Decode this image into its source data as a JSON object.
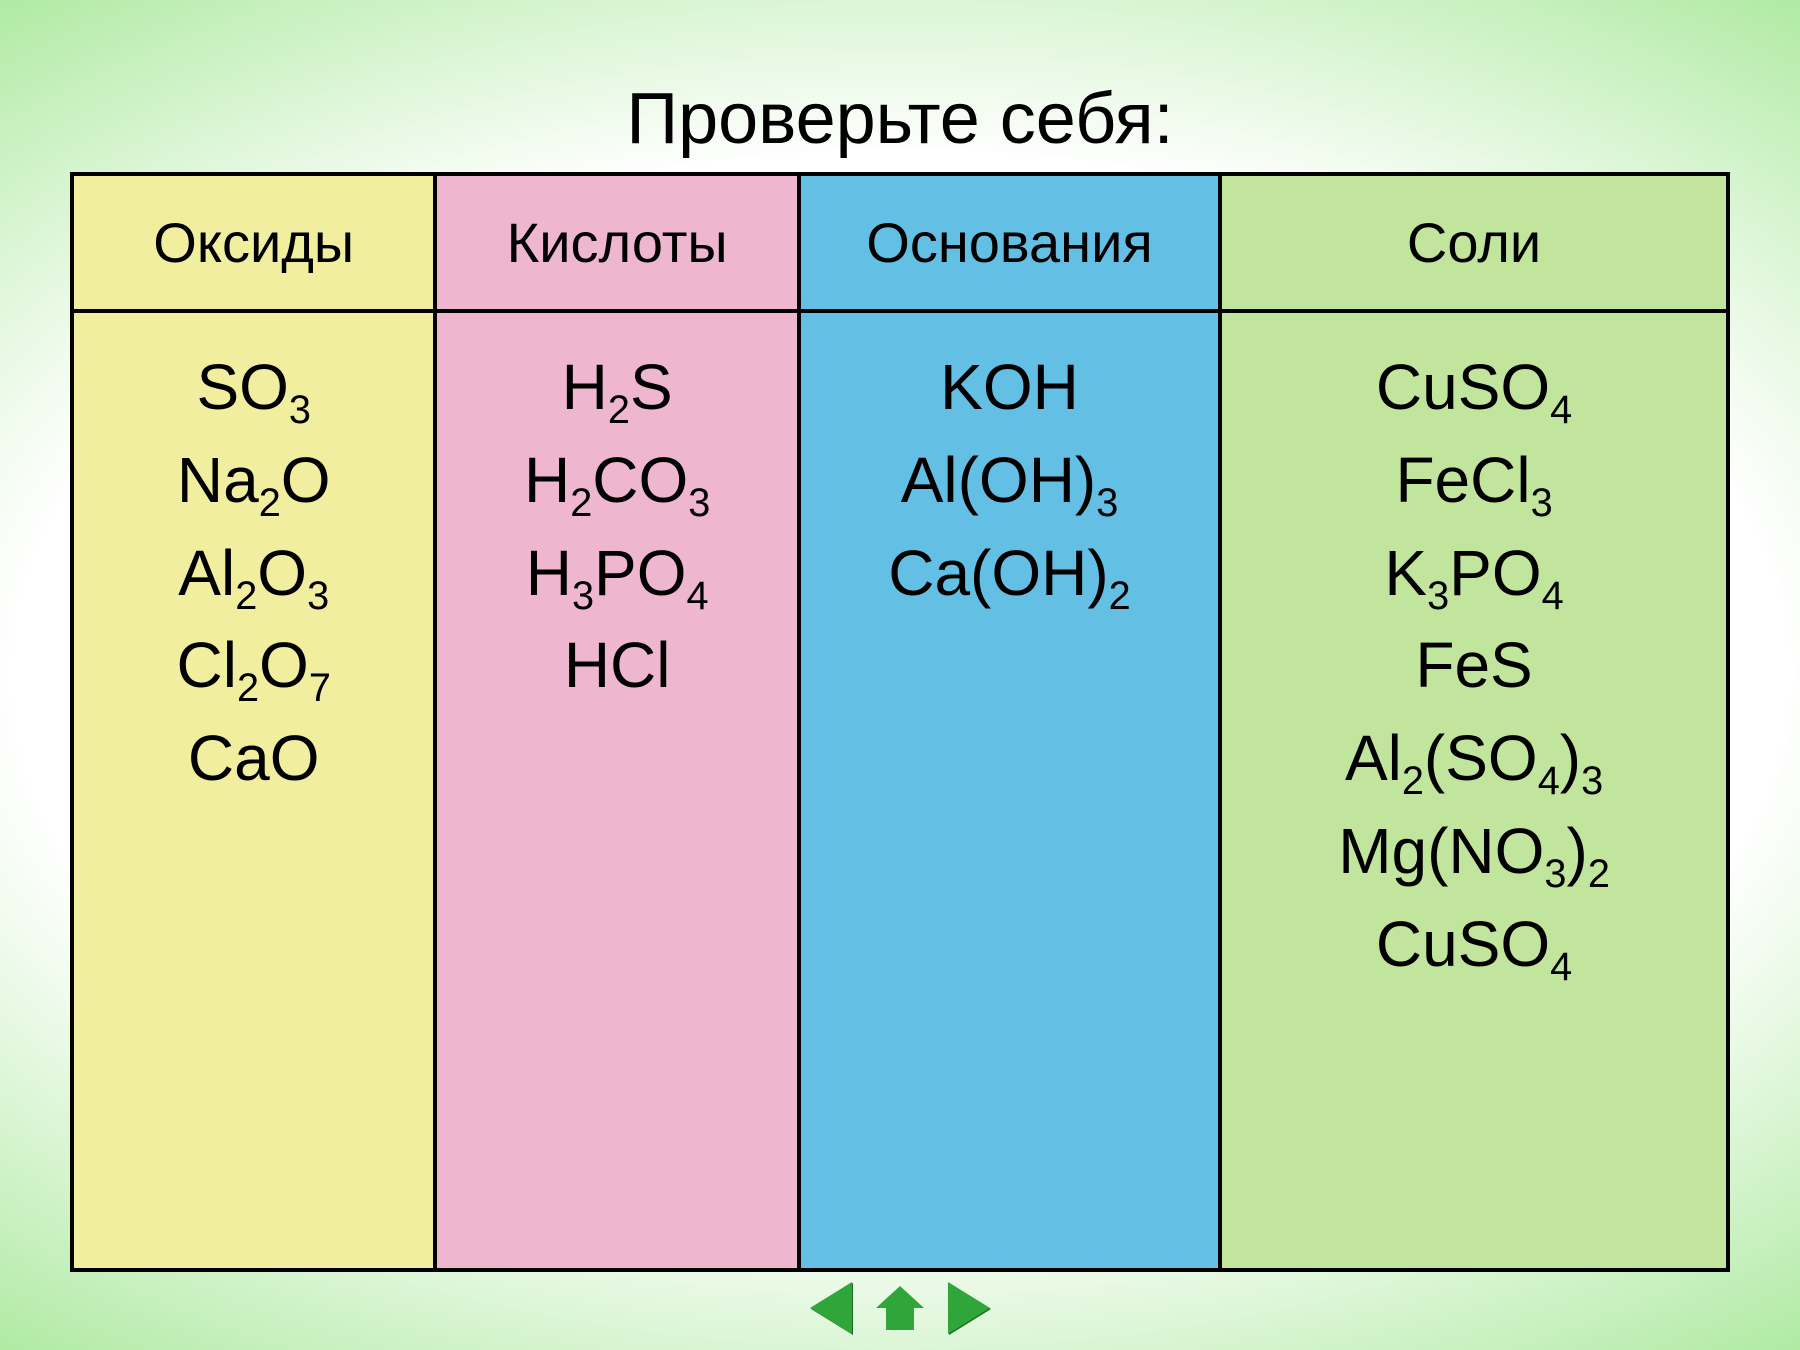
{
  "title": "Проверьте себя:",
  "columns": [
    {
      "header": "Оксиды",
      "bg": "#f2ee9f",
      "formulas": [
        "SO_3",
        "Na_2O",
        "Al_2O_3",
        "Cl_2O_7",
        "CaO"
      ]
    },
    {
      "header": "Кислоты",
      "bg": "#eeb6cf",
      "formulas": [
        "H_2S",
        "H_2CO_3",
        "H_3PO_4",
        "HCl"
      ]
    },
    {
      "header": "Основания",
      "bg": "#63bfe4",
      "formulas": [
        "KOH",
        "Al(OH)_3",
        "Ca(OH)_2"
      ]
    },
    {
      "header": "Соли",
      "bg": "#c1e59d",
      "formulas": [
        "CuSO_4",
        "FeCl_3",
        "K_3PO_4",
        "FeS",
        "Al_2(SO_4)_3",
        "Mg(NO_3)_2",
        "CuSO_4"
      ]
    }
  ],
  "style": {
    "title_fontsize": 72,
    "header_fontsize": 56,
    "body_fontsize": 64,
    "border_color": "#000000",
    "border_width": 4,
    "nav_color": "#2fa53a",
    "col_widths_pct": [
      22,
      22,
      25.5,
      30.5
    ],
    "slide_bg_gradient": [
      "#ffffff",
      "#a8e89a",
      "#3fc24a",
      "#1a9e2f"
    ]
  }
}
